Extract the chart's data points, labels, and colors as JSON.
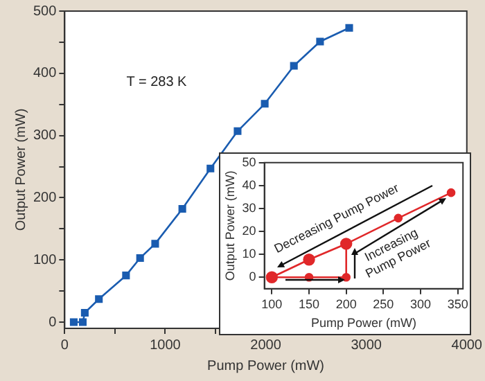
{
  "chart_data": [
    {
      "type": "line",
      "xlabel": "Pump Power (mW)",
      "ylabel": "Output Power (mW)",
      "annotations": [
        "T = 283 K"
      ],
      "x": [
        90,
        180,
        200,
        340,
        610,
        750,
        900,
        1170,
        1450,
        1720,
        1990,
        2280,
        2540,
        2830
      ],
      "series": [
        {
          "color": "#1a5cb0",
          "values": [
            0,
            0,
            15,
            37,
            75,
            103,
            126,
            182,
            247,
            307,
            351,
            412,
            451,
            473
          ]
        }
      ],
      "xlim": [
        0,
        4000
      ],
      "xticks": [
        0,
        {
          "value": 500,
          "label": null
        },
        1000,
        {
          "value": 1500,
          "label": null
        },
        2000,
        {
          "value": 2500,
          "label": null
        },
        3000,
        {
          "value": 3500,
          "label": null
        },
        4000
      ],
      "ylim": [
        -10,
        500
      ],
      "yticks": [
        0,
        {
          "value": 50,
          "label": null
        },
        100,
        {
          "value": 150,
          "label": null
        },
        200,
        {
          "value": 250,
          "label": null
        },
        300,
        {
          "value": 350,
          "label": null
        },
        400,
        {
          "value": 450,
          "label": null
        },
        500
      ],
      "marker": "square"
    },
    {
      "type": "line",
      "xlabel": "Pump Power (mW)",
      "ylabel": "Output Power (mW)",
      "annotations": [
        "Decreasing Pump Power",
        "Increasing Pump Power"
      ],
      "series": [
        {
          "color": "#e0282a",
          "x": [
            100,
            150,
            200,
            200,
            270,
            341
          ],
          "values": [
            0,
            0,
            0,
            14.6,
            25.8,
            36.9
          ]
        },
        {
          "color": "#e0282a",
          "x": [
            200,
            150,
            100
          ],
          "values": [
            14.6,
            7.7,
            0
          ]
        }
      ],
      "xlim": [
        90,
        357
      ],
      "xticks": [
        100,
        150,
        200,
        250,
        300,
        350
      ],
      "ylim": [
        -5,
        50
      ],
      "yticks": [
        0,
        10,
        20,
        30,
        40,
        50
      ],
      "marker": "circle"
    }
  ]
}
